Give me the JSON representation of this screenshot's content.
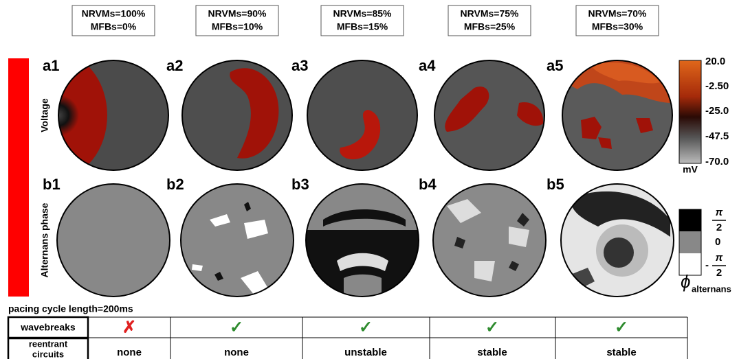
{
  "columns": [
    {
      "label_top": "NRVMs=100%",
      "label_bottom": "MFBs=0%",
      "voltage_panel": "a1",
      "phase_panel": "b1",
      "wavebreaks": "✗",
      "reentrant": "none"
    },
    {
      "label_top": "NRVMs=90%",
      "label_bottom": "MFBs=10%",
      "voltage_panel": "a2",
      "phase_panel": "b2",
      "wavebreaks": "✓",
      "reentrant": "none"
    },
    {
      "label_top": "NRVMs=85%",
      "label_bottom": "MFBs=15%",
      "voltage_panel": "a3",
      "phase_panel": "b3",
      "wavebreaks": "✓",
      "reentrant": "unstable"
    },
    {
      "label_top": "NRVMs=75%",
      "label_bottom": "MFBs=25%",
      "voltage_panel": "a4",
      "phase_panel": "b4",
      "wavebreaks": "✓",
      "reentrant": "stable"
    },
    {
      "label_top": "NRVMs=70%",
      "label_bottom": "MFBs=30%",
      "voltage_panel": "a5",
      "phase_panel": "b5",
      "wavebreaks": "✓",
      "reentrant": "stable"
    }
  ],
  "row_labels": {
    "voltage": "Voltage",
    "phase": "Alternans phase"
  },
  "voltage_colorbar": {
    "ticks": [
      "20.0",
      "-2.50",
      "-25.0",
      "-47.5",
      "-70.0"
    ],
    "unit": "mV"
  },
  "phase_colorbar": {
    "top": {
      "numerator": "π",
      "denominator": "2"
    },
    "middle": "0",
    "bottom": {
      "sign": "-",
      "numerator": "π",
      "denominator": "2"
    },
    "symbol": "ϕ",
    "subscript": "alternans"
  },
  "pacing": "pacing cycle length=200ms",
  "table": {
    "row_headers": [
      [
        "wavebreaks"
      ],
      [
        "reentrant",
        "circuits"
      ]
    ]
  }
}
